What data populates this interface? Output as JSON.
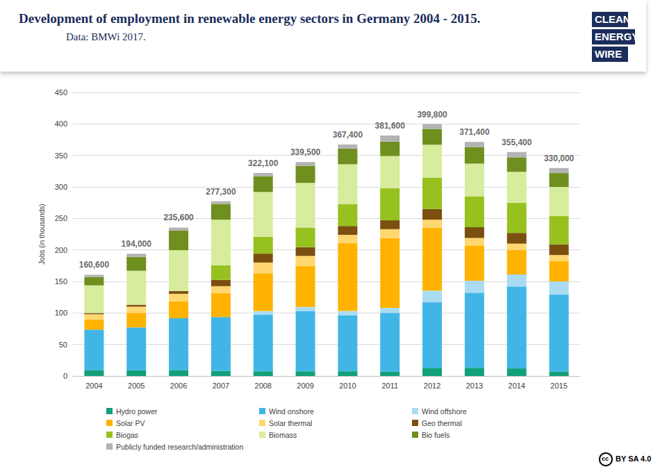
{
  "chart_data": {
    "type": "bar",
    "stacked": true,
    "title": "Development of employment in renewable energy sectors in Germany 2004 - 2015.",
    "subtitle": "Data: BMWi 2017.",
    "y_label": "Jobs (in thousands)",
    "categories": [
      "2004",
      "2005",
      "2006",
      "2007",
      "2008",
      "2009",
      "2010",
      "2011",
      "2012",
      "2013",
      "2014",
      "2015"
    ],
    "series": [
      {
        "name": "Hydro power",
        "color": "#12a07a",
        "values": [
          9.5,
          9,
          9.5,
          8,
          7.5,
          7.5,
          7.5,
          7,
          13,
          13,
          12,
          7
        ]
      },
      {
        "name": "Wind onshore",
        "color": "#41b6e6",
        "values": [
          64,
          68,
          82,
          85.5,
          89.5,
          95.5,
          89,
          93,
          104,
          119,
          130,
          122
        ]
      },
      {
        "name": "Wind offshore",
        "color": "#a9dcf3",
        "values": [
          0,
          0,
          0,
          0,
          6,
          6.5,
          6.5,
          8,
          18,
          19,
          19,
          21
        ]
      },
      {
        "name": "Solar PV",
        "color": "#ffb300",
        "values": [
          16,
          23,
          27,
          38,
          60,
          65,
          108,
          111,
          100,
          56,
          39,
          32
        ]
      },
      {
        "name": "Solar thermal",
        "color": "#ffd76e",
        "values": [
          8.5,
          10,
          12,
          11,
          17,
          16,
          13,
          14,
          13,
          12,
          10,
          10
        ]
      },
      {
        "name": "Geo thermal",
        "color": "#7b4f0f",
        "values": [
          1.8,
          3,
          4,
          10,
          14,
          14,
          14,
          14,
          17,
          17,
          17,
          17
        ]
      },
      {
        "name": "Biogas",
        "color": "#96c11f",
        "values": [
          0,
          0,
          0,
          23,
          27,
          31,
          35,
          51,
          50,
          49,
          48,
          45
        ]
      },
      {
        "name": "Biomass",
        "color": "#d7ec9c",
        "values": [
          44,
          54,
          65,
          72.5,
          71,
          71,
          63,
          51,
          52,
          52,
          49,
          46
        ]
      },
      {
        "name": "Bio fuels",
        "color": "#6f8f1f",
        "values": [
          13.3,
          22,
          31,
          25,
          25,
          27,
          25,
          23,
          25,
          26,
          23,
          22
        ]
      },
      {
        "name": "Publicly funded research/administration",
        "color": "#b3b3b3",
        "values": [
          3.5,
          5,
          5.1,
          4.3,
          5.1,
          6,
          6.4,
          9.6,
          7.8,
          8.4,
          8.4,
          8
        ]
      }
    ],
    "totals": [
      160.6,
      194,
      235.6,
      277.3,
      322.1,
      339.5,
      367.4,
      381.6,
      399.8,
      371.4,
      355.4,
      330
    ],
    "total_labels": [
      "160,600",
      "194,000",
      "235,600",
      "277,300",
      "322,100",
      "339,500",
      "367,400",
      "381,600",
      "399,800",
      "371,400",
      "355,400",
      "330,000"
    ],
    "ylim": [
      0,
      450
    ],
    "yticks": [
      0,
      50,
      100,
      150,
      200,
      250,
      300,
      350,
      400,
      450
    ],
    "grid": true,
    "legend": "bottom"
  },
  "logo": [
    "CLEAN",
    "ENERGY",
    "WIRE"
  ],
  "license_icon": "cc",
  "license": "BY SA 4.0"
}
